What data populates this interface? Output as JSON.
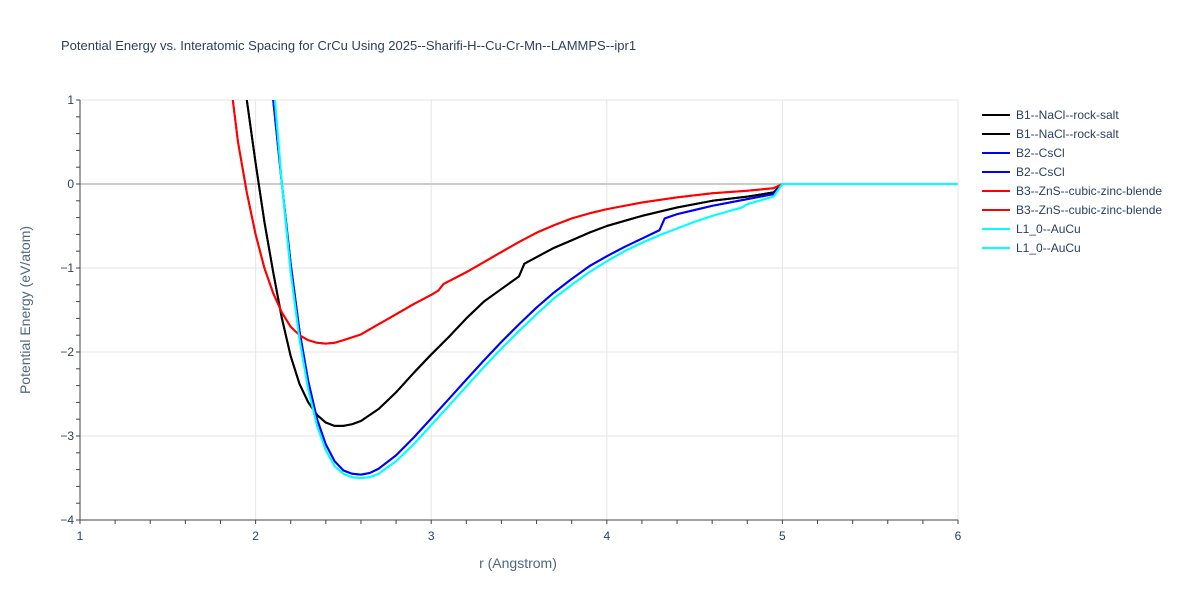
{
  "chart_data": {
    "type": "line",
    "title": "Potential Energy vs. Interatomic Spacing for CrCu Using 2025--Sharifi-H--Cu-Cr-Mn--LAMMPS--ipr1",
    "xlabel": "r (Angstrom)",
    "ylabel": "Potential Energy (eV/atom)",
    "xlim": [
      1,
      6
    ],
    "ylim": [
      -4,
      1
    ],
    "x_ticks": [
      1,
      2,
      3,
      4,
      5,
      6
    ],
    "y_ticks": [
      -4,
      -3,
      -2,
      -1,
      0,
      1
    ],
    "x_tick_labels": [
      "1",
      "2",
      "3",
      "4",
      "5",
      "6"
    ],
    "y_tick_labels": [
      "−4",
      "−3",
      "−2",
      "−1",
      "0",
      "1"
    ],
    "grid": true,
    "legend_position": "right",
    "series": [
      {
        "name": "B1--NaCl--rock-salt",
        "color": "#000000",
        "x": [
          1.95,
          2.0,
          2.05,
          2.1,
          2.15,
          2.2,
          2.25,
          2.3,
          2.35,
          2.4,
          2.45,
          2.5,
          2.55,
          2.6,
          2.7,
          2.8,
          2.9,
          3.0,
          3.1,
          3.2,
          3.3,
          3.4,
          3.5,
          3.53,
          3.6,
          3.7,
          3.8,
          3.9,
          4.0,
          4.2,
          4.4,
          4.6,
          4.8,
          4.95,
          5.0,
          5.5,
          6.0
        ],
        "y": [
          1.0,
          0.25,
          -0.45,
          -1.05,
          -1.6,
          -2.05,
          -2.38,
          -2.6,
          -2.75,
          -2.84,
          -2.88,
          -2.88,
          -2.86,
          -2.82,
          -2.68,
          -2.48,
          -2.25,
          -2.03,
          -1.82,
          -1.6,
          -1.4,
          -1.25,
          -1.1,
          -0.95,
          -0.87,
          -0.76,
          -0.67,
          -0.58,
          -0.5,
          -0.38,
          -0.28,
          -0.2,
          -0.15,
          -0.1,
          0.0,
          0.0,
          0.0
        ]
      },
      {
        "name": "B1--NaCl--rock-salt",
        "color": "#000000",
        "x": [
          1.95,
          2.0,
          2.05,
          2.1,
          2.15,
          2.2,
          2.25,
          2.3,
          2.35,
          2.4,
          2.45,
          2.5,
          2.55,
          2.6,
          2.7,
          2.8,
          2.9,
          3.0,
          3.1,
          3.2,
          3.3,
          3.4,
          3.5,
          3.53,
          3.6,
          3.7,
          3.8,
          3.9,
          4.0,
          4.2,
          4.4,
          4.6,
          4.8,
          4.95,
          5.0
        ],
        "y": [
          1.0,
          0.25,
          -0.45,
          -1.05,
          -1.6,
          -2.05,
          -2.38,
          -2.6,
          -2.75,
          -2.84,
          -2.88,
          -2.88,
          -2.86,
          -2.82,
          -2.68,
          -2.48,
          -2.25,
          -2.03,
          -1.82,
          -1.6,
          -1.4,
          -1.25,
          -1.1,
          -0.95,
          -0.87,
          -0.76,
          -0.67,
          -0.58,
          -0.5,
          -0.38,
          -0.28,
          -0.2,
          -0.15,
          -0.1,
          0.0
        ]
      },
      {
        "name": "B2--CsCl",
        "color": "#0000ff",
        "x": [
          2.1,
          2.15,
          2.2,
          2.25,
          2.3,
          2.35,
          2.4,
          2.45,
          2.5,
          2.55,
          2.6,
          2.65,
          2.7,
          2.8,
          2.9,
          3.0,
          3.1,
          3.2,
          3.3,
          3.4,
          3.5,
          3.6,
          3.7,
          3.8,
          3.9,
          4.0,
          4.1,
          4.2,
          4.3,
          4.33,
          4.4,
          4.5,
          4.6,
          4.7,
          4.8,
          4.9,
          4.95,
          5.0,
          5.5,
          6.0
        ],
        "y": [
          1.0,
          0.0,
          -0.95,
          -1.75,
          -2.35,
          -2.8,
          -3.1,
          -3.3,
          -3.41,
          -3.45,
          -3.46,
          -3.44,
          -3.39,
          -3.23,
          -3.02,
          -2.79,
          -2.56,
          -2.33,
          -2.1,
          -1.88,
          -1.67,
          -1.47,
          -1.29,
          -1.13,
          -0.98,
          -0.86,
          -0.75,
          -0.65,
          -0.55,
          -0.41,
          -0.36,
          -0.31,
          -0.26,
          -0.22,
          -0.18,
          -0.14,
          -0.12,
          0.0,
          0.0,
          0.0
        ]
      },
      {
        "name": "B2--CsCl",
        "color": "#0000ff",
        "x": [
          2.1,
          2.15,
          2.2,
          2.25,
          2.3,
          2.35,
          2.4,
          2.45,
          2.5,
          2.55,
          2.6,
          2.65,
          2.7,
          2.8,
          2.9,
          3.0,
          3.1,
          3.2,
          3.3,
          3.4,
          3.5,
          3.6,
          3.7,
          3.8,
          3.9,
          4.0,
          4.1,
          4.2,
          4.3,
          4.33,
          4.4,
          4.5,
          4.6,
          4.7,
          4.8,
          4.9,
          4.95,
          5.0
        ],
        "y": [
          1.0,
          0.0,
          -0.95,
          -1.75,
          -2.35,
          -2.8,
          -3.1,
          -3.3,
          -3.41,
          -3.45,
          -3.46,
          -3.44,
          -3.39,
          -3.23,
          -3.02,
          -2.79,
          -2.56,
          -2.33,
          -2.1,
          -1.88,
          -1.67,
          -1.47,
          -1.29,
          -1.13,
          -0.98,
          -0.86,
          -0.75,
          -0.65,
          -0.55,
          -0.41,
          -0.36,
          -0.31,
          -0.26,
          -0.22,
          -0.18,
          -0.14,
          -0.12,
          0.0
        ]
      },
      {
        "name": "B3--ZnS--cubic-zinc-blende",
        "color": "#ff0000",
        "x": [
          1.87,
          1.9,
          1.95,
          2.0,
          2.05,
          2.1,
          2.15,
          2.2,
          2.25,
          2.3,
          2.35,
          2.4,
          2.45,
          2.5,
          2.6,
          2.7,
          2.8,
          2.9,
          3.0,
          3.04,
          3.07,
          3.2,
          3.3,
          3.4,
          3.5,
          3.6,
          3.7,
          3.8,
          3.9,
          4.0,
          4.2,
          4.4,
          4.6,
          4.8,
          4.95,
          5.0,
          5.5,
          6.0
        ],
        "y": [
          1.0,
          0.5,
          -0.1,
          -0.6,
          -1.0,
          -1.3,
          -1.53,
          -1.7,
          -1.8,
          -1.86,
          -1.89,
          -1.9,
          -1.89,
          -1.86,
          -1.79,
          -1.67,
          -1.55,
          -1.43,
          -1.32,
          -1.27,
          -1.19,
          -1.05,
          -0.93,
          -0.81,
          -0.69,
          -0.58,
          -0.49,
          -0.41,
          -0.35,
          -0.3,
          -0.22,
          -0.16,
          -0.11,
          -0.08,
          -0.05,
          0.0,
          0.0,
          0.0
        ]
      },
      {
        "name": "B3--ZnS--cubic-zinc-blende",
        "color": "#ff0000",
        "x": [
          1.87,
          1.9,
          1.95,
          2.0,
          2.05,
          2.1,
          2.15,
          2.2,
          2.25,
          2.3,
          2.35,
          2.4,
          2.45,
          2.5,
          2.6,
          2.7,
          2.8,
          2.9,
          3.0,
          3.04,
          3.07,
          3.2,
          3.3,
          3.4,
          3.5,
          3.6,
          3.7,
          3.8,
          3.9,
          4.0,
          4.2,
          4.4,
          4.6,
          4.8,
          4.95,
          5.0
        ],
        "y": [
          1.0,
          0.5,
          -0.1,
          -0.6,
          -1.0,
          -1.3,
          -1.53,
          -1.7,
          -1.8,
          -1.86,
          -1.89,
          -1.9,
          -1.89,
          -1.86,
          -1.79,
          -1.67,
          -1.55,
          -1.43,
          -1.32,
          -1.27,
          -1.19,
          -1.05,
          -0.93,
          -0.81,
          -0.69,
          -0.58,
          -0.49,
          -0.41,
          -0.35,
          -0.3,
          -0.22,
          -0.16,
          -0.11,
          -0.08,
          -0.05,
          0.0
        ]
      },
      {
        "name": "L1_0--AuCu",
        "color": "#00ffff",
        "x": [
          2.11,
          2.15,
          2.2,
          2.25,
          2.3,
          2.35,
          2.4,
          2.45,
          2.5,
          2.55,
          2.6,
          2.65,
          2.7,
          2.8,
          2.9,
          3.0,
          3.1,
          3.2,
          3.3,
          3.4,
          3.5,
          3.6,
          3.7,
          3.8,
          3.9,
          4.0,
          4.1,
          4.2,
          4.3,
          4.4,
          4.5,
          4.6,
          4.7,
          4.77,
          4.8,
          4.9,
          4.95,
          5.0,
          5.5,
          6.0
        ],
        "y": [
          1.0,
          0.0,
          -1.05,
          -1.85,
          -2.45,
          -2.88,
          -3.17,
          -3.36,
          -3.45,
          -3.49,
          -3.5,
          -3.49,
          -3.45,
          -3.3,
          -3.1,
          -2.87,
          -2.64,
          -2.41,
          -2.18,
          -1.96,
          -1.75,
          -1.55,
          -1.36,
          -1.2,
          -1.05,
          -0.92,
          -0.8,
          -0.7,
          -0.61,
          -0.53,
          -0.45,
          -0.38,
          -0.32,
          -0.28,
          -0.24,
          -0.18,
          -0.15,
          0.0,
          0.0,
          0.0
        ]
      },
      {
        "name": "L1_0--AuCu",
        "color": "#00ffff",
        "x": [
          2.11,
          2.15,
          2.2,
          2.25,
          2.3,
          2.35,
          2.4,
          2.45,
          2.5,
          2.55,
          2.6,
          2.65,
          2.7,
          2.8,
          2.9,
          3.0,
          3.1,
          3.2,
          3.3,
          3.4,
          3.5,
          3.6,
          3.7,
          3.8,
          3.9,
          4.0,
          4.1,
          4.2,
          4.3,
          4.4,
          4.5,
          4.6,
          4.7,
          4.77,
          4.8,
          4.9,
          4.95,
          5.0
        ],
        "y": [
          1.0,
          0.0,
          -1.05,
          -1.85,
          -2.45,
          -2.88,
          -3.17,
          -3.36,
          -3.45,
          -3.49,
          -3.5,
          -3.49,
          -3.45,
          -3.3,
          -3.1,
          -2.87,
          -2.64,
          -2.41,
          -2.18,
          -1.96,
          -1.75,
          -1.55,
          -1.36,
          -1.2,
          -1.05,
          -0.92,
          -0.8,
          -0.7,
          -0.61,
          -0.53,
          -0.45,
          -0.38,
          -0.32,
          -0.28,
          -0.24,
          -0.18,
          -0.15,
          0.0
        ]
      }
    ]
  }
}
